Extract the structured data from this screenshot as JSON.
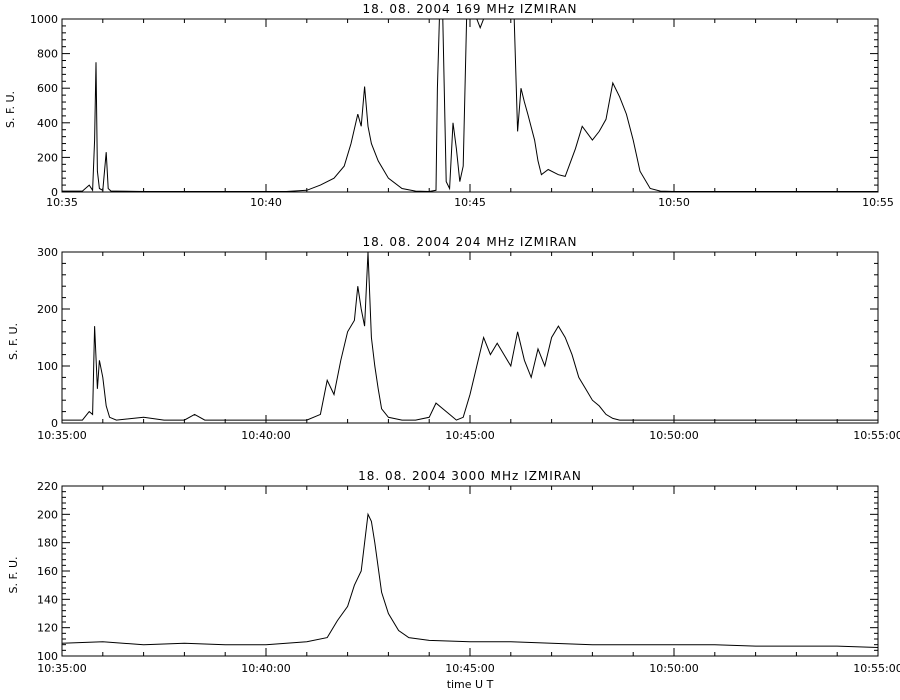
{
  "chart_data": [
    {
      "type": "line",
      "title": "18.  08.  2004    169 MHz    IZMIRAN",
      "ylabel": "S. F. U.",
      "xlabel": "",
      "xlim": [
        "10:35",
        "10:55"
      ],
      "ylim": [
        0,
        1000
      ],
      "x_tick_labels": [
        "10:35",
        "10:40",
        "10:45",
        "10:50",
        "10:55"
      ],
      "y_tick_values": [
        0,
        200,
        400,
        600,
        800,
        1000
      ],
      "y_tick_labels": [
        "0",
        "200",
        "400",
        "600",
        "800",
        "1000"
      ],
      "grid": false,
      "series": [
        {
          "x": [
            "10:35:00",
            "10:35:30",
            "10:35:40",
            "10:35:45",
            "10:35:48",
            "10:35:50",
            "10:35:52",
            "10:35:55",
            "10:36:00",
            "10:36:05",
            "10:36:08",
            "10:36:12",
            "10:36:20",
            "10:37:00",
            "10:38:00",
            "10:39:00",
            "10:40:00",
            "10:40:30",
            "10:41:00",
            "10:41:20",
            "10:41:40",
            "10:41:55",
            "10:42:05",
            "10:42:15",
            "10:42:20",
            "10:42:25",
            "10:42:30",
            "10:42:35",
            "10:42:45",
            "10:43:00",
            "10:43:20",
            "10:43:40",
            "10:44:00",
            "10:44:10",
            "10:44:12",
            "10:44:15",
            "10:44:20",
            "10:44:25",
            "10:44:30",
            "10:44:35",
            "10:44:40",
            "10:44:45",
            "10:44:50",
            "10:44:55",
            "10:45:00",
            "10:45:05",
            "10:45:10",
            "10:45:15",
            "10:45:20",
            "10:45:25",
            "10:46:05",
            "10:46:10",
            "10:46:15",
            "10:46:20",
            "10:46:25",
            "10:46:35",
            "10:46:40",
            "10:46:45",
            "10:46:55",
            "10:47:10",
            "10:47:20",
            "10:47:35",
            "10:47:45",
            "10:48:00",
            "10:48:10",
            "10:48:20",
            "10:48:30",
            "10:48:40",
            "10:48:50",
            "10:49:00",
            "10:49:10",
            "10:49:25",
            "10:49:40",
            "10:50:00",
            "10:50:30",
            "10:51:00",
            "10:52:00",
            "10:53:00",
            "10:54:00",
            "10:55:00"
          ],
          "values": [
            5,
            5,
            40,
            10,
            300,
            750,
            120,
            20,
            10,
            230,
            20,
            5,
            5,
            3,
            3,
            3,
            3,
            3,
            10,
            40,
            80,
            150,
            280,
            450,
            380,
            610,
            380,
            280,
            180,
            80,
            20,
            5,
            3,
            10,
            600,
            1000,
            1000,
            60,
            20,
            400,
            250,
            60,
            150,
            1000,
            1000,
            1000,
            1000,
            950,
            1000,
            1000,
            1000,
            350,
            600,
            520,
            450,
            300,
            180,
            100,
            130,
            100,
            90,
            250,
            380,
            300,
            350,
            420,
            630,
            550,
            450,
            300,
            120,
            20,
            5,
            3,
            3,
            3,
            3,
            3,
            3,
            3
          ]
        }
      ]
    },
    {
      "type": "line",
      "title": "18.  08.  2004    204 MHz    IZMIRAN",
      "ylabel": "S. F. U.",
      "xlabel": "",
      "xlim": [
        "10:35:00",
        "10:55:00"
      ],
      "ylim": [
        0,
        300
      ],
      "x_tick_labels": [
        "10:35:00",
        "10:40:00",
        "10:45:00",
        "10:50:00",
        "10:55:00"
      ],
      "y_tick_values": [
        0,
        100,
        200,
        300
      ],
      "y_tick_labels": [
        "0",
        "100",
        "200",
        "300"
      ],
      "grid": false,
      "series": [
        {
          "x": [
            "10:35:00",
            "10:35:30",
            "10:35:40",
            "10:35:45",
            "10:35:48",
            "10:35:52",
            "10:35:55",
            "10:36:00",
            "10:36:05",
            "10:36:10",
            "10:36:20",
            "10:37:00",
            "10:37:30",
            "10:38:00",
            "10:38:15",
            "10:38:30",
            "10:39:00",
            "10:40:00",
            "10:41:00",
            "10:41:20",
            "10:41:30",
            "10:41:40",
            "10:41:50",
            "10:42:00",
            "10:42:10",
            "10:42:15",
            "10:42:20",
            "10:42:25",
            "10:42:30",
            "10:42:35",
            "10:42:40",
            "10:42:45",
            "10:42:50",
            "10:43:00",
            "10:43:20",
            "10:43:40",
            "10:44:00",
            "10:44:10",
            "10:44:20",
            "10:44:30",
            "10:44:40",
            "10:44:50",
            "10:45:00",
            "10:45:10",
            "10:45:20",
            "10:45:30",
            "10:45:40",
            "10:45:50",
            "10:46:00",
            "10:46:10",
            "10:46:20",
            "10:46:30",
            "10:46:40",
            "10:46:50",
            "10:47:00",
            "10:47:10",
            "10:47:20",
            "10:47:30",
            "10:47:40",
            "10:47:50",
            "10:48:00",
            "10:48:10",
            "10:48:20",
            "10:48:30",
            "10:48:40",
            "10:49:00",
            "10:49:20",
            "10:50:00",
            "10:51:00",
            "10:52:00",
            "10:53:00",
            "10:54:00",
            "10:55:00"
          ],
          "values": [
            5,
            5,
            20,
            15,
            170,
            60,
            110,
            80,
            30,
            10,
            5,
            10,
            5,
            5,
            15,
            5,
            5,
            5,
            5,
            15,
            75,
            50,
            110,
            160,
            180,
            240,
            200,
            170,
            300,
            150,
            100,
            60,
            25,
            10,
            5,
            5,
            10,
            35,
            25,
            15,
            5,
            10,
            50,
            100,
            150,
            120,
            140,
            120,
            100,
            160,
            110,
            80,
            130,
            100,
            150,
            170,
            150,
            120,
            80,
            60,
            40,
            30,
            15,
            8,
            5,
            5,
            5,
            5,
            5,
            5,
            5,
            5,
            5
          ]
        }
      ]
    },
    {
      "type": "line",
      "title": "18.  08.  2004    3000 MHz    IZMIRAN",
      "ylabel": "S. F. U.",
      "xlabel": "time  U T",
      "xlim": [
        "10:35:00",
        "10:55:00"
      ],
      "ylim": [
        100,
        220
      ],
      "x_tick_labels": [
        "10:35:00",
        "10:40:00",
        "10:45:00",
        "10:50:00",
        "10:55:00"
      ],
      "y_tick_values": [
        100,
        120,
        140,
        160,
        180,
        200,
        220
      ],
      "y_tick_labels": [
        "100",
        "120",
        "140",
        "160",
        "180",
        "200",
        "220"
      ],
      "grid": false,
      "series": [
        {
          "x": [
            "10:35:00",
            "10:36:00",
            "10:37:00",
            "10:38:00",
            "10:39:00",
            "10:40:00",
            "10:41:00",
            "10:41:30",
            "10:41:45",
            "10:42:00",
            "10:42:10",
            "10:42:20",
            "10:42:25",
            "10:42:30",
            "10:42:35",
            "10:42:40",
            "10:42:50",
            "10:43:00",
            "10:43:15",
            "10:43:30",
            "10:44:00",
            "10:45:00",
            "10:46:00",
            "10:47:00",
            "10:48:00",
            "10:49:00",
            "10:50:00",
            "10:51:00",
            "10:52:00",
            "10:53:00",
            "10:54:00",
            "10:55:00"
          ],
          "values": [
            109,
            110,
            108,
            109,
            108,
            108,
            110,
            113,
            125,
            135,
            150,
            160,
            180,
            200,
            195,
            180,
            145,
            130,
            118,
            113,
            111,
            110,
            110,
            109,
            108,
            108,
            108,
            108,
            107,
            107,
            107,
            106
          ]
        }
      ]
    }
  ]
}
